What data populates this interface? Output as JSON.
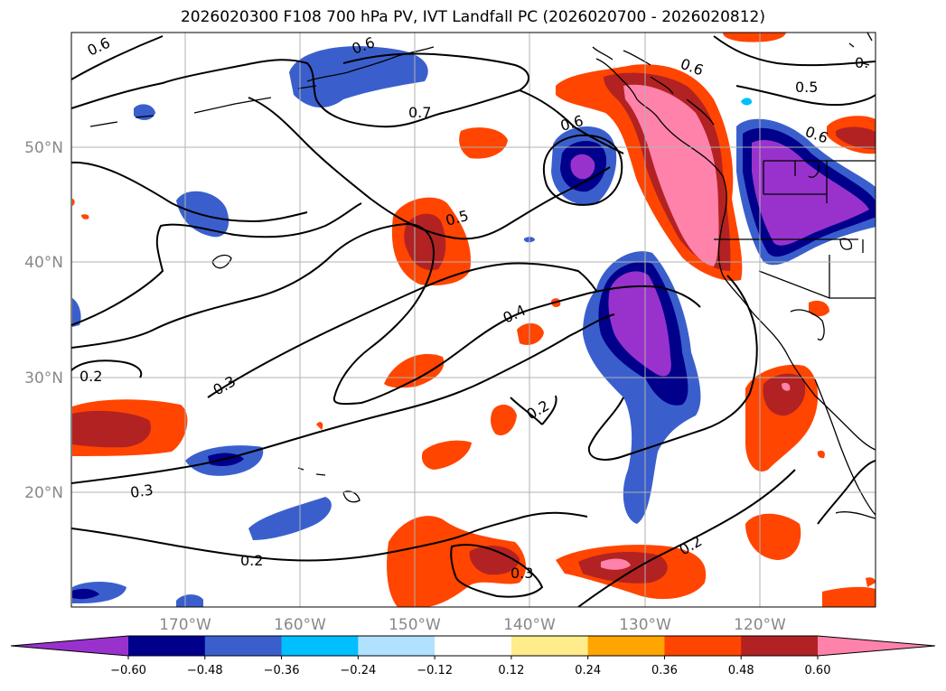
{
  "title": "2026020300 F108 700 hPa PV, IVT Landfall PC (2026020700 - 2026020812)",
  "map": {
    "lat_labels": [
      "50°N",
      "40°N",
      "30°N",
      "20°N"
    ],
    "lon_labels": [
      "170°W",
      "160°W",
      "150°W",
      "140°W",
      "130°W",
      "120°W"
    ],
    "contour_labels": [
      "0.6",
      "0.6",
      "0.7",
      "0.6",
      "0.5",
      "0.6",
      "0.5",
      "0.4",
      "0.3",
      "0.2",
      "0.2",
      "0.3",
      "0.2",
      "0.3",
      "0.2",
      "0."
    ],
    "grid_color": "#b0b0b0",
    "contour_color": "#000000"
  },
  "colorbar": {
    "colors": [
      "#9932cc",
      "#00008b",
      "#3a5fcd",
      "#00bfff",
      "#b0e2ff",
      "#ffffff",
      "#ffec8b",
      "#ffa500",
      "#ff4500",
      "#b22222",
      "#ff82ab"
    ],
    "ticks": [
      "−0.60",
      "−0.48",
      "−0.36",
      "−0.24",
      "−0.12",
      "0.12",
      "0.24",
      "0.36",
      "0.48",
      "0.60"
    ]
  }
}
